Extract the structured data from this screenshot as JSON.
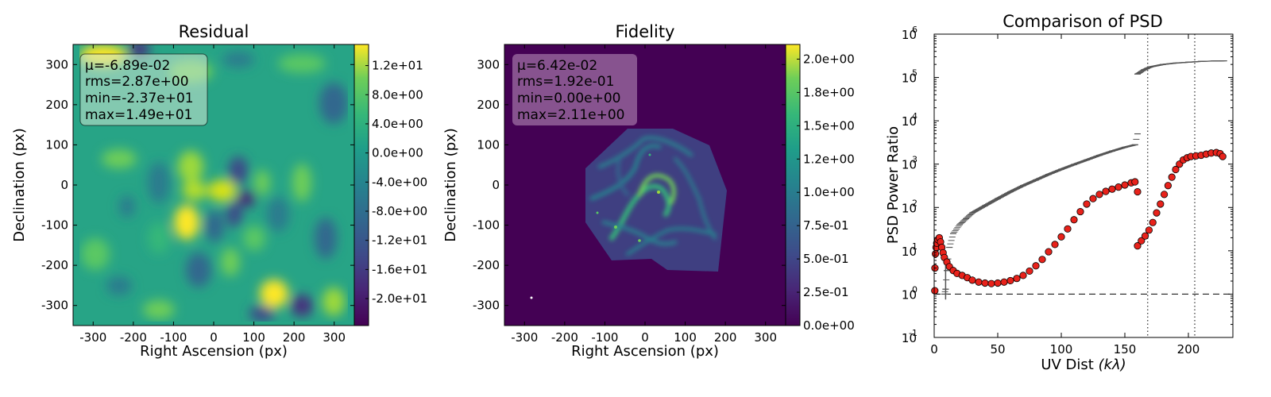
{
  "chart_data": [
    {
      "type": "heatmap",
      "title": "Residual",
      "xlabel": "Right Ascension (px)",
      "ylabel": "Declination (px)",
      "xlim": [
        -350,
        350
      ],
      "ylim": [
        -350,
        350
      ],
      "xticks": [
        "-300",
        "-200",
        "-100",
        "0",
        "100",
        "200",
        "300"
      ],
      "yticks": [
        "-300",
        "-200",
        "-100",
        "0",
        "100",
        "200",
        "300"
      ],
      "colormap": "viridis",
      "colorbar": {
        "range": [
          -23.7,
          14.9
        ],
        "ticks": [
          {
            "value": 12,
            "label": "1.2e+01"
          },
          {
            "value": 8,
            "label": "8.0e+00"
          },
          {
            "value": 4,
            "label": "4.0e+00"
          },
          {
            "value": 0,
            "label": "0.0e+00"
          },
          {
            "value": -4,
            "label": "-4.0e+00"
          },
          {
            "value": -8,
            "label": "-8.0e+00"
          },
          {
            "value": -12,
            "label": "-1.2e+01"
          },
          {
            "value": -16,
            "label": "-1.6e+01"
          },
          {
            "value": -20,
            "label": "-2.0e+01"
          }
        ]
      },
      "stats": [
        "μ=-6.89e-02",
        "rms=2.87e+00",
        "min=-2.37e+01",
        "max=1.49e+01"
      ],
      "stats_box_color": "#cfe8d4"
    },
    {
      "type": "heatmap",
      "title": "Fidelity",
      "xlabel": "Right Ascension (px)",
      "ylabel": "Declination (px)",
      "xlim": [
        -350,
        350
      ],
      "ylim": [
        -350,
        350
      ],
      "xticks": [
        "-300",
        "-200",
        "-100",
        "0",
        "100",
        "200",
        "300"
      ],
      "yticks": [
        "-300",
        "-200",
        "-100",
        "0",
        "100",
        "200",
        "300"
      ],
      "colormap": "viridis",
      "colorbar": {
        "range": [
          0,
          2.11
        ],
        "ticks": [
          {
            "value": 2.0,
            "label": "2.0e+00"
          },
          {
            "value": 1.75,
            "label": "1.8e+00"
          },
          {
            "value": 1.5,
            "label": "1.5e+00"
          },
          {
            "value": 1.25,
            "label": "1.2e+00"
          },
          {
            "value": 1.0,
            "label": "1.0e+00"
          },
          {
            "value": 0.75,
            "label": "7.5e-01"
          },
          {
            "value": 0.5,
            "label": "5.0e-01"
          },
          {
            "value": 0.25,
            "label": "2.5e-01"
          },
          {
            "value": 0.0,
            "label": "0.0e+00"
          }
        ]
      },
      "stats": [
        "μ=6.42e-02",
        "rms=1.92e-01",
        "min=0.00e+00",
        "max=2.11e+00"
      ],
      "stats_box_color": "#c9a6c9"
    },
    {
      "type": "scatter",
      "title": "Comparison of PSD",
      "xlabel": "UV Dist",
      "xlabel_unit": "(kλ)",
      "ylabel": "PSD Power Ratio",
      "xlim": [
        0,
        235
      ],
      "ylim_exponents": [
        -1,
        6
      ],
      "yscale": "log",
      "xticks": [
        0,
        50,
        100,
        150,
        200
      ],
      "yticks": [
        {
          "base": "10",
          "exp": "6"
        },
        {
          "base": "10",
          "exp": "5"
        },
        {
          "base": "10",
          "exp": "4"
        },
        {
          "base": "10",
          "exp": "3"
        },
        {
          "base": "10",
          "exp": "2"
        },
        {
          "base": "10",
          "exp": "1"
        },
        {
          "base": "10",
          "exp": "0"
        },
        {
          "base": "10",
          "exp": "-1"
        }
      ],
      "reference_hline": 1,
      "reference_vlines": [
        168,
        205
      ],
      "series": [
        {
          "marker": "circle",
          "color": "#e8221b",
          "points": [
            [
              0.5,
              1.2
            ],
            [
              0.6,
              4.0
            ],
            [
              1,
              8.5
            ],
            [
              1.5,
              12
            ],
            [
              2,
              15
            ],
            [
              3,
              18
            ],
            [
              4,
              20
            ],
            [
              5,
              16
            ],
            [
              6,
              12
            ],
            [
              7,
              9
            ],
            [
              8,
              7
            ],
            [
              10,
              5.5
            ],
            [
              12,
              4.3
            ],
            [
              15,
              3.5
            ],
            [
              18,
              3.0
            ],
            [
              22,
              2.7
            ],
            [
              26,
              2.4
            ],
            [
              30,
              2.1
            ],
            [
              35,
              1.9
            ],
            [
              40,
              1.8
            ],
            [
              45,
              1.75
            ],
            [
              50,
              1.8
            ],
            [
              55,
              1.9
            ],
            [
              60,
              2.05
            ],
            [
              65,
              2.3
            ],
            [
              70,
              2.7
            ],
            [
              75,
              3.4
            ],
            [
              80,
              4.5
            ],
            [
              85,
              6.3
            ],
            [
              90,
              9.5
            ],
            [
              95,
              14
            ],
            [
              100,
              21
            ],
            [
              105,
              32
            ],
            [
              110,
              52
            ],
            [
              115,
              80
            ],
            [
              120,
              120
            ],
            [
              125,
              160
            ],
            [
              130,
              200
            ],
            [
              135,
              235
            ],
            [
              140,
              265
            ],
            [
              145,
              295
            ],
            [
              150,
              330
            ],
            [
              155,
              370
            ],
            [
              158,
              390
            ],
            [
              160,
              230
            ],
            [
              160,
              13
            ],
            [
              163,
              17
            ],
            [
              166,
              22
            ],
            [
              169,
              30
            ],
            [
              172,
              45
            ],
            [
              175,
              75
            ],
            [
              178,
              120
            ],
            [
              181,
              200
            ],
            [
              184,
              320
            ],
            [
              187,
              500
            ],
            [
              190,
              750
            ],
            [
              193,
              1000
            ],
            [
              196,
              1250
            ],
            [
              199,
              1400
            ],
            [
              202,
              1500
            ],
            [
              206,
              1550
            ],
            [
              210,
              1600
            ],
            [
              214,
              1700
            ],
            [
              218,
              1800
            ],
            [
              222,
              1850
            ],
            [
              225,
              1750
            ],
            [
              227,
              1500
            ]
          ]
        },
        {
          "marker": "errorbar",
          "color": "#555555",
          "points": [
            [
              8,
              1.0
            ],
            [
              9,
              1.3
            ],
            [
              10,
              3.5
            ],
            [
              12,
              12
            ],
            [
              15,
              25
            ],
            [
              20,
              40
            ],
            [
              25,
              55
            ],
            [
              30,
              75
            ],
            [
              40,
              110
            ],
            [
              50,
              160
            ],
            [
              60,
              230
            ],
            [
              70,
              320
            ],
            [
              80,
              430
            ],
            [
              90,
              580
            ],
            [
              100,
              760
            ],
            [
              110,
              980
            ],
            [
              120,
              1250
            ],
            [
              130,
              1600
            ],
            [
              140,
              2000
            ],
            [
              150,
              2450
            ],
            [
              158,
              2800
            ],
            [
              160,
              5000
            ],
            [
              160,
              120000
            ],
            [
              165,
              150000
            ],
            [
              170,
              175000
            ],
            [
              180,
              200000
            ],
            [
              190,
              215000
            ],
            [
              200,
              225000
            ],
            [
              210,
              235000
            ],
            [
              220,
              240000
            ],
            [
              228,
              242000
            ]
          ]
        }
      ]
    }
  ]
}
